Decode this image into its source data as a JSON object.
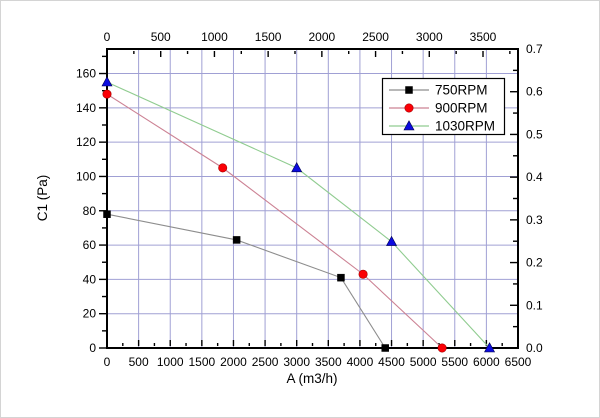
{
  "chart_data": {
    "type": "line",
    "title": "",
    "xlabel": "A (m3/h)",
    "ylabel": "C1 (Pa)",
    "axes": {
      "bottom": {
        "label": "A (m3/h)",
        "min": 0,
        "max": 6500,
        "major_ticks": [
          0,
          500,
          1000,
          1500,
          2000,
          2500,
          3000,
          3500,
          4000,
          4500,
          5000,
          5500,
          6000,
          6500
        ],
        "minor_step": 250
      },
      "top": {
        "major_ticks": [
          0,
          500,
          1000,
          1500,
          2000,
          2500,
          3000,
          3500
        ],
        "minor_step": 250,
        "bottom_units_per_top_unit": 1.699
      },
      "left": {
        "label": "C1 (Pa)",
        "min": 0,
        "max": 174.3,
        "major_ticks": [
          0,
          20,
          40,
          60,
          80,
          100,
          120,
          140,
          160
        ],
        "minor_step": 10
      },
      "right": {
        "min": 0,
        "max": 0.7,
        "major_tick_labels": [
          "0.0",
          "0.1",
          "0.2",
          "0.3",
          "0.4",
          "0.5",
          "0.6",
          "0.7"
        ],
        "minor_step": 0.05
      }
    },
    "grid": {
      "x_step": 500,
      "y_step": 20,
      "color": "#a0a0d4"
    },
    "series": [
      {
        "name": "750RPM",
        "marker": "square",
        "marker_color": "#000000",
        "marker_edge": "#000000",
        "line_color": "#8d8d8d",
        "points": [
          [
            0,
            78
          ],
          [
            2050,
            63
          ],
          [
            3700,
            41
          ],
          [
            4400,
            0
          ]
        ]
      },
      {
        "name": "900RPM",
        "marker": "circle",
        "marker_color": "#fb0006",
        "marker_edge": "#a50000",
        "line_color": "#cc8294",
        "points": [
          [
            0,
            148
          ],
          [
            1830,
            105
          ],
          [
            4050,
            43
          ],
          [
            5300,
            0
          ]
        ]
      },
      {
        "name": "1030RPM",
        "marker": "triangle",
        "marker_color": "#0b0bdf",
        "marker_edge": "#000050",
        "line_color": "#90cc90",
        "points": [
          [
            0,
            155
          ],
          [
            3000,
            105
          ],
          [
            4500,
            62
          ],
          [
            6050,
            0
          ]
        ]
      }
    ],
    "legend": {
      "position": "upper-right"
    },
    "frame_color": "#000000"
  }
}
